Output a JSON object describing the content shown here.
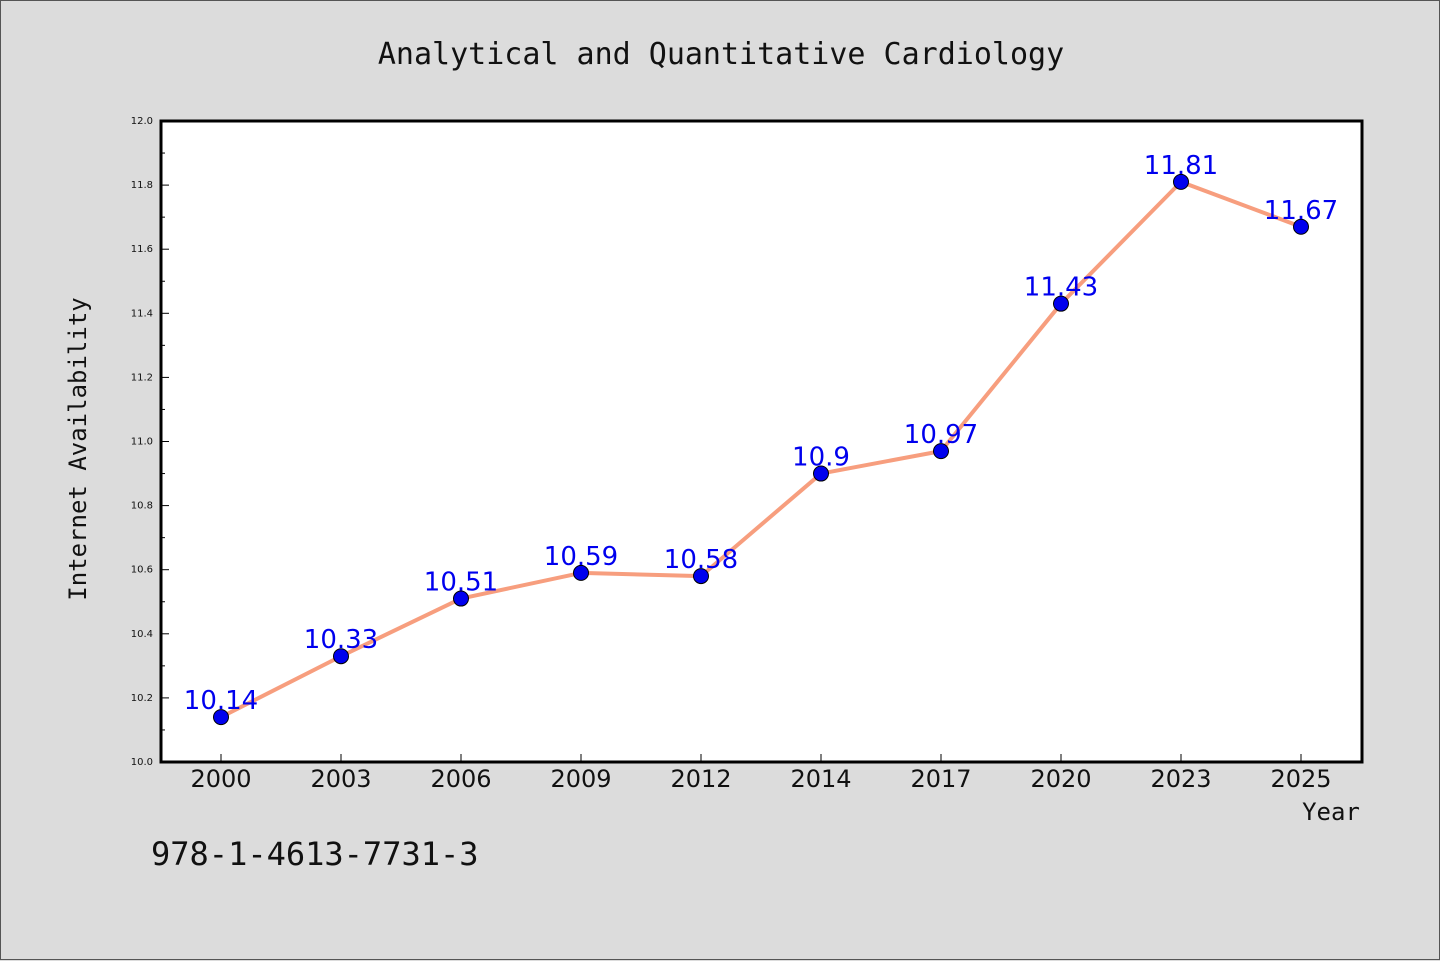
{
  "chart_data": {
    "type": "line",
    "title": "Analytical and Quantitative Cardiology",
    "xlabel": "Year",
    "ylabel": "Internet Availability",
    "categories": [
      "2000",
      "2003",
      "2006",
      "2009",
      "2012",
      "2014",
      "2017",
      "2020",
      "2023",
      "2025"
    ],
    "values": [
      10.14,
      10.33,
      10.51,
      10.59,
      10.58,
      10.9,
      10.97,
      11.43,
      11.81,
      11.67
    ],
    "data_labels": [
      "10.14",
      "10.33",
      "10.51",
      "10.59",
      "10.58",
      "10.9",
      "10.97",
      "11.43",
      "11.81",
      "11.67"
    ],
    "ylim": [
      10.0,
      12.0
    ],
    "yticks": [
      "10.0",
      "10.2",
      "10.4",
      "10.6",
      "10.8",
      "11.0",
      "11.2",
      "11.4",
      "11.6",
      "11.8",
      "12.0"
    ],
    "grid": false,
    "legend": "none",
    "colors": {
      "line": "#f79e7e",
      "marker": "#0000ee",
      "data_label": "#0000ee",
      "plot_background": "#ffffff",
      "figure_background": "#dcdcdc"
    }
  },
  "footer": {
    "isbn": "978-1-4613-7731-3"
  }
}
